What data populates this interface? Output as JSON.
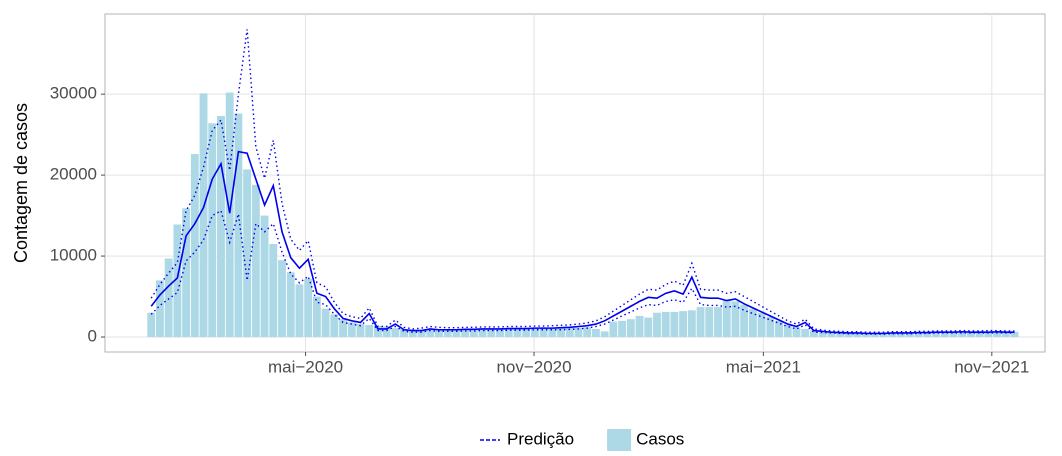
{
  "chart_data": {
    "type": "bar-line",
    "y_label": "Contagem de casos",
    "x": [
      0,
      1,
      2,
      3,
      4,
      5,
      6,
      7,
      8,
      9,
      10,
      11,
      12,
      13,
      14,
      15,
      16,
      17,
      18,
      19,
      20,
      21,
      22,
      23,
      24,
      25,
      26,
      27,
      28,
      29,
      30,
      31,
      32,
      33,
      34,
      35,
      36,
      37,
      38,
      39,
      40,
      41,
      42,
      43,
      44,
      45,
      46,
      47,
      48,
      49,
      50,
      51,
      52,
      53,
      54,
      55,
      56,
      57,
      58,
      59,
      60,
      61,
      62,
      63,
      64,
      65,
      66,
      67,
      68,
      69,
      70,
      71,
      72,
      73,
      74,
      75,
      76,
      77,
      78,
      79,
      80,
      81,
      82,
      83,
      84,
      85,
      86,
      87,
      88,
      89,
      90,
      91,
      92,
      93,
      94,
      95,
      96,
      97,
      98,
      99
    ],
    "xlim": [
      -5.3,
      102.5
    ],
    "xticks": [
      {
        "value": 17.7,
        "label": "mai−2020"
      },
      {
        "value": 43.9,
        "label": "nov−2020"
      },
      {
        "value": 70.2,
        "label": "mai−2021"
      },
      {
        "value": 96.4,
        "label": "nov−2021"
      }
    ],
    "ylim": [
      -1850,
      39900
    ],
    "yticks": [
      0,
      10000,
      20000,
      30000
    ],
    "grid": true,
    "legend": "bottom",
    "series": [
      {
        "name": "Casos",
        "type": "bar",
        "color": "#add8e6",
        "values": [
          3000,
          7000,
          9700,
          13900,
          15900,
          22600,
          30100,
          26400,
          27300,
          30200,
          27600,
          20700,
          18800,
          15000,
          11500,
          9500,
          8000,
          6500,
          7200,
          5000,
          3500,
          2800,
          2200,
          1800,
          1600,
          1500,
          1400,
          1300,
          1100,
          1000,
          900,
          900,
          1000,
          900,
          900,
          900,
          950,
          950,
          1000,
          1000,
          1000,
          1000,
          1050,
          1050,
          1050,
          1100,
          1100,
          1100,
          1150,
          1150,
          1200,
          1000,
          700,
          1900,
          2000,
          2200,
          2600,
          2400,
          3000,
          3100,
          3100,
          3200,
          3300,
          3700,
          3700,
          3700,
          4600,
          4400,
          4000,
          3500,
          3000,
          2500,
          2000,
          1500,
          1200,
          1000,
          800,
          600,
          550,
          500,
          500,
          450,
          450,
          450,
          450,
          450,
          500,
          500,
          500,
          550,
          550,
          600,
          600,
          600,
          600,
          600,
          650,
          600,
          600,
          650
        ]
      },
      {
        "name": "Predição",
        "type": "line",
        "color": "#0000ee",
        "values": [
          3800,
          5200,
          6300,
          7300,
          12500,
          14000,
          16000,
          19500,
          21400,
          15300,
          22900,
          22700,
          19500,
          16300,
          18700,
          13000,
          9800,
          8500,
          9600,
          5400,
          5000,
          3500,
          2300,
          2000,
          1800,
          2900,
          1000,
          1000,
          1600,
          900,
          800,
          800,
          1000,
          900,
          900,
          900,
          950,
          950,
          1000,
          1000,
          1000,
          1050,
          1050,
          1050,
          1100,
          1100,
          1100,
          1150,
          1200,
          1300,
          1400,
          1600,
          2000,
          2600,
          3200,
          3800,
          4400,
          4900,
          4800,
          5400,
          5700,
          5300,
          7400,
          4900,
          4800,
          4800,
          4500,
          4700,
          4100,
          3600,
          3100,
          2600,
          2100,
          1600,
          1300,
          1800,
          800,
          700,
          600,
          550,
          500,
          500,
          450,
          450,
          450,
          500,
          500,
          500,
          550,
          550,
          600,
          600,
          600,
          650,
          600,
          600,
          600,
          650,
          600,
          600
        ],
        "lower": [
          2800,
          3900,
          4700,
          5500,
          9400,
          10500,
          12000,
          15000,
          15600,
          11700,
          15200,
          7000,
          14000,
          13000,
          14000,
          10500,
          7800,
          6700,
          7500,
          4300,
          4000,
          2800,
          1800,
          1600,
          1400,
          2300,
          800,
          800,
          1300,
          700,
          600,
          600,
          800,
          700,
          700,
          700,
          750,
          750,
          800,
          800,
          800,
          850,
          850,
          850,
          900,
          900,
          900,
          900,
          950,
          1000,
          1100,
          1300,
          1600,
          2100,
          2600,
          3100,
          3600,
          4000,
          3900,
          4400,
          4600,
          4300,
          6000,
          4000,
          3900,
          3900,
          3700,
          3800,
          3300,
          2900,
          2500,
          2100,
          1700,
          1300,
          1000,
          1500,
          600,
          550,
          500,
          450,
          400,
          400,
          350,
          350,
          350,
          400,
          400,
          400,
          450,
          450,
          500,
          500,
          500,
          500,
          500,
          500,
          500,
          500,
          500,
          500
        ],
        "upper": [
          4800,
          6500,
          7900,
          9200,
          15600,
          17500,
          21000,
          25500,
          26800,
          20600,
          30000,
          38000,
          23500,
          19600,
          24300,
          16500,
          12100,
          10700,
          11900,
          6700,
          6200,
          4300,
          2900,
          2500,
          2300,
          3600,
          1300,
          1300,
          2100,
          1200,
          1000,
          1100,
          1300,
          1200,
          1150,
          1150,
          1200,
          1200,
          1250,
          1250,
          1250,
          1300,
          1300,
          1300,
          1350,
          1350,
          1400,
          1450,
          1500,
          1600,
          1750,
          2000,
          2500,
          3200,
          3900,
          4600,
          5300,
          5900,
          5800,
          6500,
          6900,
          6400,
          9100,
          5900,
          5800,
          5800,
          5400,
          5600,
          5000,
          4400,
          3800,
          3200,
          2600,
          2000,
          1600,
          2200,
          1000,
          850,
          750,
          700,
          650,
          650,
          600,
          600,
          600,
          650,
          650,
          650,
          700,
          700,
          750,
          750,
          750,
          800,
          750,
          750,
          800,
          800,
          750,
          750
        ]
      }
    ]
  }
}
